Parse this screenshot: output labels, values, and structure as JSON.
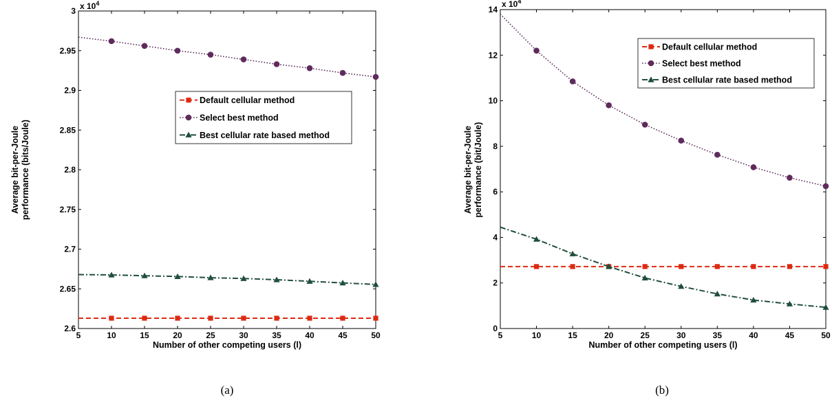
{
  "chart_data": [
    {
      "type": "line",
      "caption": "(a)",
      "xlabel": "Number of other competing users (l)",
      "ylabel": [
        "Average bit-per-Joule",
        "performance (bits/Joule)"
      ],
      "exponent": {
        "base": "x 10",
        "power": "4"
      },
      "xlim": [
        5,
        50
      ],
      "ylim": [
        2.6,
        3.0
      ],
      "xticks": [
        5,
        10,
        15,
        20,
        25,
        30,
        35,
        40,
        45,
        50
      ],
      "yticks": [
        2.6,
        2.65,
        2.7,
        2.75,
        2.8,
        2.85,
        2.9,
        2.95,
        3
      ],
      "ytick_labels": [
        "2.6",
        "2.65",
        "2.7",
        "2.75",
        "2.8",
        "2.85",
        "2.9",
        "2.95",
        "3"
      ],
      "grid": false,
      "legend_position": "center-right",
      "series": [
        {
          "name": "Default cellular method",
          "color": "#dd2a12",
          "marker": "square",
          "dash": "dashed",
          "x": [
            5,
            10,
            15,
            20,
            25,
            30,
            35,
            40,
            45,
            50
          ],
          "y": [
            2.613,
            2.613,
            2.613,
            2.613,
            2.613,
            2.613,
            2.613,
            2.613,
            2.613,
            2.613
          ]
        },
        {
          "name": "Select best method",
          "color": "#5e2b5c",
          "marker": "circle",
          "dash": "dotted",
          "x": [
            5,
            10,
            15,
            20,
            25,
            30,
            35,
            40,
            45,
            50
          ],
          "y": [
            2.967,
            2.962,
            2.956,
            2.95,
            2.945,
            2.939,
            2.933,
            2.928,
            2.922,
            2.917
          ]
        },
        {
          "name": "Best cellular rate based method",
          "color": "#1f4d3a",
          "marker": "triangle",
          "dash": "dashdot",
          "x": [
            5,
            10,
            15,
            20,
            25,
            30,
            35,
            40,
            45,
            50
          ],
          "y": [
            2.668,
            2.6675,
            2.6665,
            2.6655,
            2.664,
            2.663,
            2.6615,
            2.6595,
            2.6575,
            2.6555
          ]
        }
      ]
    },
    {
      "type": "line",
      "caption": "(b)",
      "xlabel": "Number of other competing users (l)",
      "ylabel": [
        "Average bit-per-Joule",
        "performance (bit/Joule)"
      ],
      "exponent": {
        "base": "x 10",
        "power": "4"
      },
      "xlim": [
        5,
        50
      ],
      "ylim": [
        0,
        14
      ],
      "xticks": [
        5,
        10,
        15,
        20,
        25,
        30,
        35,
        40,
        45,
        50
      ],
      "yticks": [
        0,
        2,
        4,
        6,
        8,
        10,
        12,
        14
      ],
      "ytick_labels": [
        "0",
        "2",
        "4",
        "6",
        "8",
        "10",
        "12",
        "14"
      ],
      "grid": false,
      "legend_position": "top-right",
      "series": [
        {
          "name": "Default cellular method",
          "color": "#dd2a12",
          "marker": "square",
          "dash": "dashed",
          "x": [
            5,
            10,
            15,
            20,
            25,
            30,
            35,
            40,
            45,
            50
          ],
          "y": [
            2.72,
            2.72,
            2.72,
            2.72,
            2.72,
            2.72,
            2.72,
            2.72,
            2.72,
            2.72
          ]
        },
        {
          "name": "Select best method",
          "color": "#5e2b5c",
          "marker": "circle",
          "dash": "dotted",
          "x": [
            5,
            10,
            15,
            20,
            25,
            30,
            35,
            40,
            45,
            50
          ],
          "y": [
            13.8,
            12.2,
            10.85,
            9.8,
            8.95,
            8.25,
            7.63,
            7.08,
            6.62,
            6.25
          ]
        },
        {
          "name": "Best cellular rate based method",
          "color": "#1f4d3a",
          "marker": "triangle",
          "dash": "dashdot",
          "x": [
            5,
            10,
            15,
            20,
            25,
            30,
            35,
            40,
            45,
            50
          ],
          "y": [
            4.45,
            3.92,
            3.28,
            2.72,
            2.22,
            1.85,
            1.52,
            1.25,
            1.08,
            0.93
          ]
        }
      ]
    }
  ]
}
